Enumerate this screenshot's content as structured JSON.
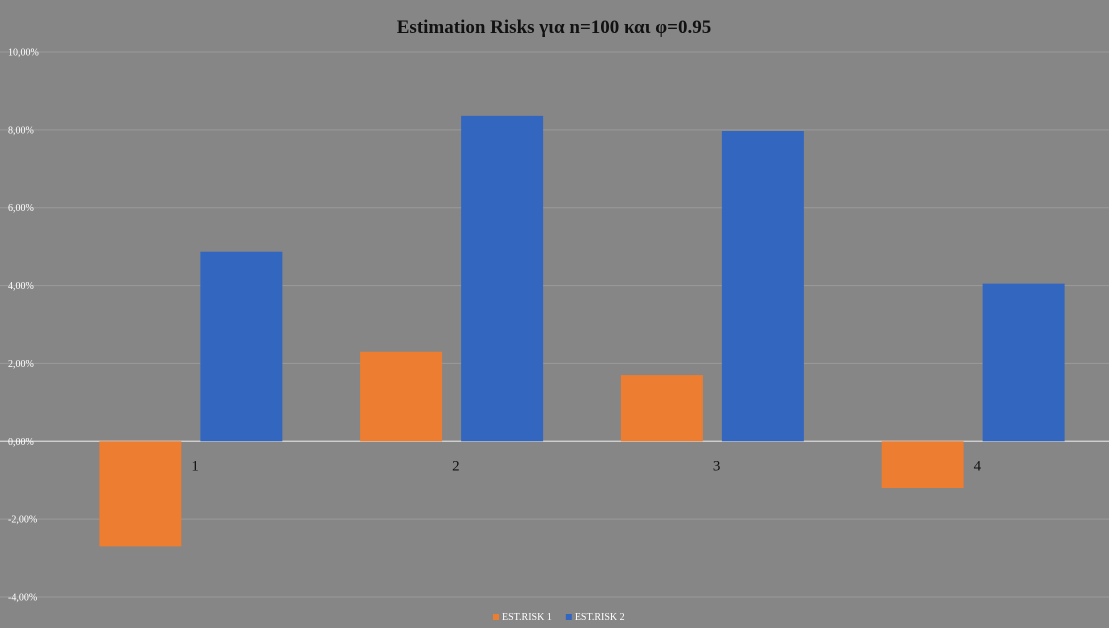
{
  "chart_data": {
    "type": "bar",
    "title": "Estimation Risks για n=100 και φ=0.95",
    "xlabel": "",
    "ylabel": "",
    "categories": [
      "1",
      "2",
      "3",
      "4"
    ],
    "series": [
      {
        "name": "EST.RISK 1",
        "color": "#ED7D31",
        "values": [
          -2.7,
          2.3,
          1.7,
          -1.2
        ]
      },
      {
        "name": "EST.RISK 2",
        "color": "#3366BF",
        "values": [
          4.87,
          8.36,
          7.97,
          4.05
        ]
      }
    ],
    "ylim": [
      -4,
      10
    ],
    "y_ticks": [
      "-4,00%",
      "-2,00%",
      "0,00%",
      "2,00%",
      "4,00%",
      "6,00%",
      "8,00%",
      "10,00%"
    ],
    "grid": true,
    "legend_position": "bottom-center",
    "background_color": "#868686"
  }
}
